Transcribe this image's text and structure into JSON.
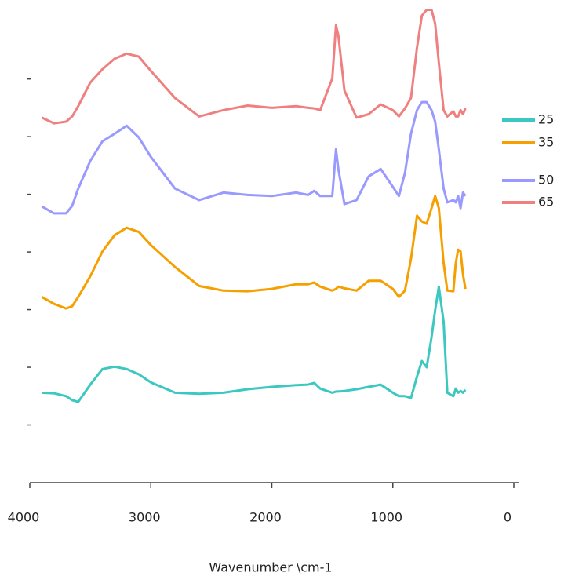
{
  "chart_data": {
    "type": "line",
    "xlabel": "Wavenumber \\cm-1",
    "x": [
      3900,
      3800,
      3700,
      3650,
      3600,
      3500,
      3400,
      3300,
      3200,
      3100,
      3000,
      2800,
      2600,
      2400,
      2200,
      2000,
      1800,
      1700,
      1650,
      1600,
      1500,
      1470,
      1450,
      1400,
      1300,
      1200,
      1100,
      1000,
      950,
      900,
      850,
      800,
      760,
      720,
      680,
      650,
      620,
      580,
      550,
      500,
      480,
      460,
      440,
      420,
      400
    ],
    "series": [
      {
        "name": "25",
        "color": "#3cc8c0",
        "values": [
          1.56,
          1.55,
          1.5,
          1.43,
          1.4,
          1.7,
          1.97,
          2.01,
          1.97,
          1.88,
          1.74,
          1.56,
          1.54,
          1.56,
          1.62,
          1.66,
          1.69,
          1.7,
          1.73,
          1.63,
          1.56,
          1.58,
          1.58,
          1.59,
          1.62,
          1.66,
          1.7,
          1.56,
          1.5,
          1.5,
          1.47,
          1.84,
          2.11,
          2.0,
          2.52,
          2.99,
          3.4,
          2.79,
          1.56,
          1.5,
          1.63,
          1.56,
          1.59,
          1.56,
          1.61
        ]
      },
      {
        "name": "35",
        "color": "#f5a000",
        "values": [
          3.22,
          3.1,
          3.02,
          3.06,
          3.22,
          3.58,
          4.01,
          4.29,
          4.42,
          4.35,
          4.12,
          3.74,
          3.41,
          3.33,
          3.32,
          3.36,
          3.44,
          3.44,
          3.47,
          3.4,
          3.33,
          3.36,
          3.4,
          3.37,
          3.33,
          3.5,
          3.5,
          3.36,
          3.22,
          3.33,
          3.88,
          4.63,
          4.53,
          4.49,
          4.76,
          4.97,
          4.76,
          3.81,
          3.33,
          3.32,
          3.81,
          4.04,
          4.01,
          3.61,
          3.36
        ]
      },
      {
        "name": "50",
        "color": "#9999ff",
        "values": [
          4.79,
          4.67,
          4.67,
          4.8,
          5.1,
          5.58,
          5.92,
          6.05,
          6.19,
          5.99,
          5.65,
          5.1,
          4.9,
          5.03,
          4.99,
          4.97,
          5.03,
          4.99,
          5.06,
          4.97,
          4.97,
          5.78,
          5.44,
          4.83,
          4.9,
          5.31,
          5.44,
          5.13,
          4.97,
          5.37,
          6.05,
          6.46,
          6.6,
          6.6,
          6.46,
          6.26,
          5.78,
          5.1,
          4.86,
          4.9,
          4.86,
          4.97,
          4.76,
          5.03,
          4.97
        ]
      },
      {
        "name": "65",
        "color": "#f08080",
        "values": [
          6.33,
          6.23,
          6.26,
          6.35,
          6.53,
          6.94,
          7.17,
          7.35,
          7.44,
          7.39,
          7.14,
          6.67,
          6.35,
          6.46,
          6.54,
          6.5,
          6.53,
          6.5,
          6.49,
          6.46,
          7.01,
          7.93,
          7.76,
          6.8,
          6.33,
          6.39,
          6.56,
          6.46,
          6.35,
          6.49,
          6.67,
          7.55,
          8.1,
          8.2,
          8.2,
          7.96,
          7.28,
          6.46,
          6.35,
          6.44,
          6.35,
          6.35,
          6.46,
          6.39,
          6.49
        ]
      }
    ],
    "xlim": [
      4000,
      0
    ],
    "xticks": [
      4000,
      3000,
      2000,
      1000,
      0
    ],
    "ylim": [
      0,
      8.37
    ],
    "yticks": [
      1,
      2,
      3,
      4,
      5,
      6,
      7
    ]
  }
}
